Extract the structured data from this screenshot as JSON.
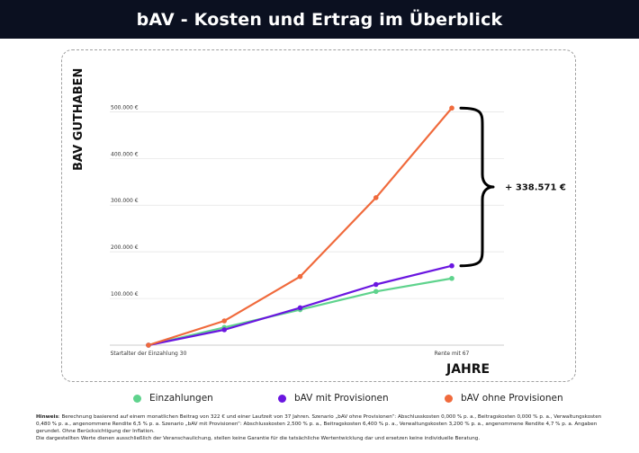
{
  "header": {
    "title": "bAV - Kosten und Ertrag im Überblick"
  },
  "colors": {
    "header_bg": "#0b1020",
    "einzahlungen": "#5fd38d",
    "mit_provisionen": "#6a16e0",
    "ohne_provisionen": "#f06a3c"
  },
  "chart_data": {
    "type": "line",
    "title": "bAV - Kosten und Ertrag im Überblick",
    "ylabel": "BAV GUTHABEN",
    "xlabel": "JAHRE",
    "x": [
      0,
      1,
      2,
      3,
      4
    ],
    "x_tick_labels": [
      "Startalter der Einzahlung 30",
      "",
      "",
      "",
      "Rente mit 67"
    ],
    "ylim": [
      0,
      520000
    ],
    "y_ticks": [
      100000,
      200000,
      300000,
      400000,
      500000
    ],
    "y_tick_labels": [
      "100.000 €",
      "200.000 €",
      "300.000 €",
      "400.000 €",
      "500.000 €"
    ],
    "grid": true,
    "legend_position": "bottom",
    "series": [
      {
        "name": "Einzahlungen",
        "color": "#5fd38d",
        "values": [
          0,
          38000,
          76000,
          115000,
          143000
        ]
      },
      {
        "name": "bAV mit Provisionen",
        "color": "#6a16e0",
        "values": [
          0,
          33000,
          80000,
          130000,
          170000
        ]
      },
      {
        "name": "bAV ohne Provisionen",
        "color": "#f06a3c",
        "values": [
          0,
          52000,
          147000,
          316000,
          508000
        ]
      }
    ],
    "annotation": {
      "text": "+ 338.571 €",
      "from_value": 170000,
      "to_value": 508000
    }
  },
  "notes": {
    "label": "Hinweis",
    "text": ": Berechnung basierend auf einem monatlichen Beitrag von 322 € und einer Laufzeit von 37 Jahren. Szenario „bAV ohne Provisionen“: Abschlusskosten 0,000 % p. a., Beitragskosten 0,000 % p. a., Verwaltungskosten 0,480 % p. a., angenommene Rendite 6,5 % p. a. Szenario „bAV mit Provisionen“: Abschlusskosten 2,500 % p. a., Beitragskosten 6,400 % p. a., Verwaltungskosten 3,200 % p. a., angenommene Rendite 4,7 % p. a. Angaben gerundet. Ohne Berücksichtigung der Inflation.",
    "text2": "Die dargestellten Werte dienen ausschließlich der Veranschaulichung, stellen keine Garantie für die tatsächliche Wertentwicklung dar und ersetzen keine individuelle Beratung."
  }
}
